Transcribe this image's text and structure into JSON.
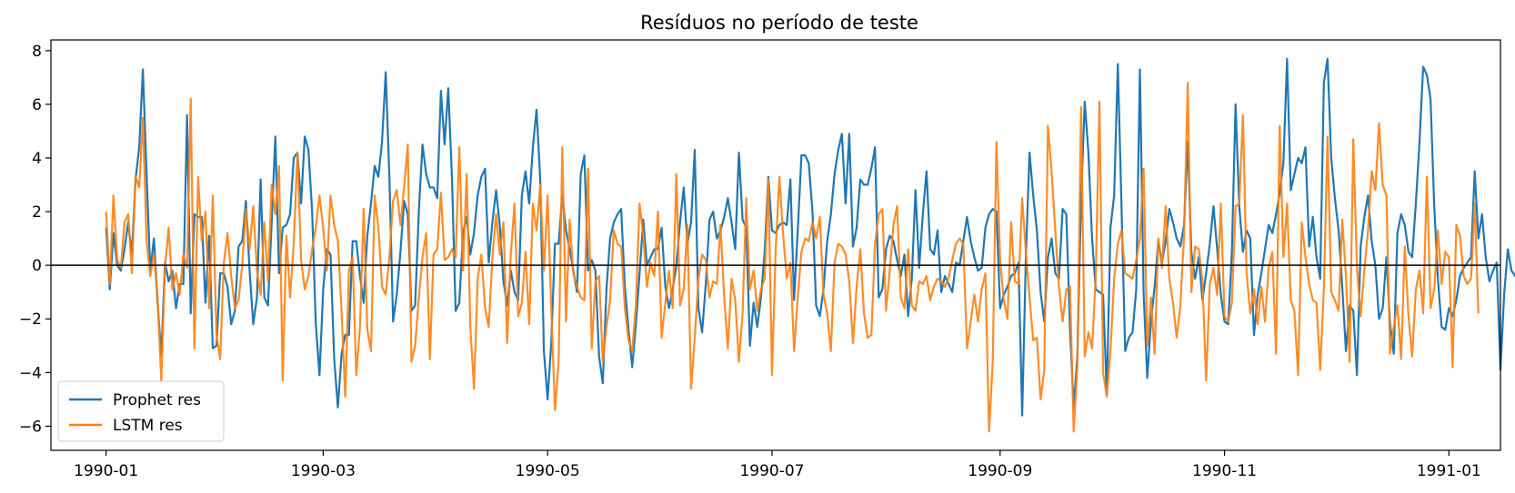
{
  "chart_data": {
    "type": "line",
    "title": "Resíduos no período de teste",
    "xlabel": "",
    "ylabel": "",
    "x_ticks": [
      "1990-01",
      "1990-03",
      "1990-05",
      "1990-07",
      "1990-09",
      "1990-11",
      "1991-01"
    ],
    "x_range": [
      "1989-12-17",
      "1991-01-15"
    ],
    "y_ticks": [
      -6,
      -4,
      -2,
      0,
      2,
      4,
      6,
      8
    ],
    "ylim": [
      -6.9,
      8.4
    ],
    "grid": false,
    "reference_line": 0,
    "legend_position": "lower-left",
    "series": [
      {
        "name": "Prophet res",
        "color": "#1f77b4",
        "start_date": "1990-01-01",
        "frequency": "daily",
        "values": [
          1.4,
          -0.9,
          1.2,
          0.0,
          -0.2,
          0.6,
          1.6,
          0.4,
          3.2,
          4.4,
          7.3,
          3.4,
          -0.2,
          1.0,
          -1.4,
          -3.4,
          0.1,
          -0.6,
          -0.2,
          -1.6,
          -0.7,
          -0.7,
          5.6,
          -1.8,
          1.9,
          1.8,
          1.8,
          -1.4,
          1.1,
          -3.1,
          -3.0,
          -0.3,
          -0.3,
          -0.8,
          -2.2,
          -1.7,
          0.7,
          0.9,
          2.4,
          -0.2,
          -2.2,
          -1.2,
          3.2,
          -1.2,
          -1.5,
          1.6,
          4.8,
          -0.3,
          1.4,
          1.5,
          1.9,
          4.0,
          4.2,
          2.3,
          4.8,
          4.3,
          2.0,
          -2.2,
          -4.1,
          -0.9,
          0.6,
          0.4,
          -3.5,
          -5.3,
          -3.3,
          -2.6,
          -2.6,
          0.9,
          0.9,
          -0.4,
          -1.4,
          1.1,
          2.3,
          3.7,
          3.3,
          4.6,
          7.2,
          3.3,
          -2.1,
          -1.1,
          0.5,
          2.4,
          1.9,
          -1.7,
          -1.5,
          2.0,
          4.5,
          3.4,
          2.9,
          2.9,
          2.5,
          6.5,
          4.5,
          6.6,
          3.3,
          -1.7,
          -1.4,
          1.2,
          1.8,
          0.4,
          1.2,
          2.6,
          3.3,
          3.6,
          0.1,
          1.6,
          2.8,
          1.5,
          -0.6,
          -1.5,
          -0.2,
          -1.0,
          -1.3,
          2.6,
          3.5,
          2.3,
          4.4,
          5.8,
          3.2,
          -3.2,
          -5.0,
          -2.9,
          0.8,
          0.8,
          2.6,
          1.3,
          0.6,
          -0.2,
          -1.0,
          3.4,
          4.1,
          -0.2,
          0.2,
          -0.2,
          -3.4,
          -4.4,
          -0.9,
          1.0,
          1.6,
          1.9,
          2.1,
          -0.8,
          -2.4,
          -3.8,
          -2.2,
          -0.3,
          1.7,
          0.0,
          0.3,
          0.6,
          0.6,
          1.4,
          -0.8,
          -1.6,
          -0.9,
          0.0,
          1.6,
          2.9,
          0.8,
          1.6,
          4.3,
          -1.6,
          -2.5,
          -0.7,
          1.7,
          2.0,
          1.0,
          1.3,
          1.8,
          2.5,
          1.6,
          0.6,
          4.2,
          1.7,
          1.4,
          -3.0,
          -1.4,
          -2.3,
          -1.2,
          0.5,
          3.3,
          1.3,
          1.2,
          1.5,
          1.6,
          1.5,
          3.2,
          -1.3,
          1.3,
          4.1,
          4.1,
          3.8,
          2.0,
          -1.5,
          -1.9,
          -0.9,
          0.9,
          1.9,
          3.4,
          4.3,
          4.9,
          2.3,
          4.9,
          0.7,
          1.4,
          3.2,
          3.0,
          3.0,
          3.6,
          4.4,
          -1.2,
          -0.9,
          0.6,
          1.1,
          0.9,
          0.2,
          -0.4,
          0.4,
          -1.9,
          -0.5,
          2.8,
          -0.1,
          1.9,
          3.5,
          0.6,
          0.4,
          1.3,
          -1.0,
          -0.4,
          -0.7,
          -1.0,
          0.1,
          0.0,
          0.9,
          1.8,
          0.9,
          0.3,
          -0.2,
          -0.1,
          1.4,
          1.9,
          2.1,
          2.0,
          -1.6,
          -1.1,
          -0.8,
          -0.4,
          -0.3,
          0.1,
          -5.6,
          0.3,
          4.2,
          2.6,
          1.3,
          -1.0,
          -2.1,
          0.3,
          1.0,
          -0.3,
          -0.5,
          2.1,
          1.9,
          -2.4,
          -5.3,
          -3.4,
          2.4,
          6.1,
          4.2,
          1.0,
          -0.9,
          -1.0,
          -1.1,
          -4.8,
          1.4,
          2.6,
          7.5,
          2.2,
          -3.2,
          -2.7,
          -2.5,
          -0.9,
          7.3,
          -1.0,
          -4.2,
          -2.1,
          -0.8,
          0.9,
          0.1,
          0.9,
          2.1,
          1.6,
          1.0,
          0.7,
          1.5,
          4.6,
          0.5,
          -0.5,
          0.3,
          -1.3,
          -0.3,
          0.8,
          2.2,
          0.6,
          -1.1,
          -2.1,
          -2.2,
          0.5,
          6.0,
          2.2,
          0.5,
          1.3,
          1.0,
          -2.6,
          -1.1,
          -0.3,
          0.6,
          1.5,
          1.2,
          1.9,
          2.7,
          3.8,
          7.7,
          2.8,
          3.4,
          4.0,
          3.8,
          4.4,
          0.7,
          1.8,
          0.3,
          -0.5,
          6.8,
          7.7,
          4.0,
          2.5,
          1.3,
          -0.8,
          -3.2,
          -1.5,
          -1.7,
          -4.1,
          0.7,
          1.8,
          2.6,
          0.9,
          0.0,
          -2.0,
          -1.6,
          0.3,
          -2.2,
          -3.3,
          1.2,
          1.9,
          1.5,
          0.5,
          0.3,
          2.3,
          4.6,
          7.4,
          7.1,
          6.2,
          2.2,
          -0.5,
          -2.3,
          -2.4,
          -1.6,
          -1.9,
          -1.3,
          -0.4,
          -0.1,
          0.1,
          0.3,
          3.5,
          1.0,
          1.9,
          0.3,
          -0.6,
          -0.2,
          0.1,
          -3.9,
          -1.1,
          0.6,
          -0.2,
          -0.4,
          -0.5,
          -0.2,
          1.7,
          -1.1
        ]
      },
      {
        "name": "LSTM res",
        "color": "#ff7f0e",
        "start_date": "1990-01-01",
        "frequency": "daily",
        "values": [
          2.0,
          -0.7,
          2.6,
          0.2,
          -0.1,
          1.6,
          1.9,
          -0.3,
          3.3,
          2.9,
          5.5,
          0.9,
          -0.4,
          0.4,
          -1.2,
          -4.3,
          -0.1,
          1.4,
          -0.9,
          -0.3,
          -1.1,
          0.4,
          -0.1,
          6.2,
          -3.1,
          3.3,
          0.9,
          2.0,
          -1.6,
          2.6,
          -2.6,
          -3.5,
          0.1,
          1.2,
          -0.4,
          -1.6,
          -1.3,
          0.0,
          2.1,
          0.6,
          2.2,
          -0.2,
          -1.1,
          1.6,
          -0.6,
          3.0,
          1.9,
          3.7,
          -4.3,
          1.1,
          -1.2,
          0.8,
          4.2,
          0.2,
          -0.9,
          -0.4,
          0.6,
          1.4,
          2.6,
          1.4,
          -0.2,
          2.6,
          1.5,
          0.9,
          -1.7,
          -4.9,
          -0.2,
          0.3,
          -4.1,
          -2.3,
          2.1,
          -2.4,
          -3.2,
          2.6,
          1.4,
          -0.8,
          -1.1,
          0.3,
          2.4,
          2.8,
          1.5,
          2.9,
          4.5,
          -3.6,
          -3.0,
          -1.2,
          0.3,
          1.2,
          -3.5,
          0.4,
          0.6,
          2.7,
          0.2,
          0.3,
          0.6,
          0.3,
          4.4,
          -0.2,
          3.4,
          -2.3,
          -4.6,
          -0.5,
          0.4,
          -1.6,
          -2.3,
          0.3,
          1.9,
          0.4,
          1.6,
          -2.9,
          0.4,
          2.3,
          -1.9,
          -1.4,
          0.5,
          -2.2,
          2.3,
          1.3,
          3.0,
          -0.2,
          2.6,
          -1.6,
          -5.4,
          -3.6,
          4.4,
          -2.1,
          1.7,
          -0.3,
          -0.8,
          -1.2,
          -1.3,
          3.6,
          -3.1,
          -0.6,
          -0.4,
          -3.6,
          -2.3,
          -1.3,
          1.3,
          0.8,
          0.7,
          -1.6,
          -2.8,
          -3.2,
          -1.5,
          2.3,
          1.1,
          -0.8,
          0.1,
          -0.4,
          2.0,
          -2.7,
          -1.4,
          -0.2,
          -1.6,
          3.4,
          -1.5,
          -0.9,
          1.5,
          -4.6,
          -2.7,
          -0.5,
          0.4,
          0.2,
          -1.2,
          -0.6,
          -0.7,
          1.5,
          -1.2,
          -3.1,
          -0.5,
          -1.3,
          -3.6,
          -1.8,
          2.5,
          -0.9,
          -0.2,
          -1.7,
          -0.9,
          -0.5,
          3.2,
          -4.1,
          0.6,
          3.3,
          1.2,
          -0.5,
          0.1,
          -3.2,
          -1.2,
          0.5,
          1.0,
          0.9,
          1.6,
          1.0,
          1.8,
          -1.1,
          -1.8,
          -3.2,
          0.1,
          0.8,
          0.7,
          0.4,
          -0.6,
          -2.9,
          -0.8,
          0.6,
          -1.8,
          -2.7,
          -2.6,
          0.8,
          1.9,
          2.1,
          -1.7,
          -0.2,
          1.5,
          2.2,
          -1.2,
          -1.6,
          0.6,
          -1.5,
          -1.7,
          -0.6,
          -0.7,
          -0.4,
          -1.3,
          -0.8,
          -0.5,
          -0.6,
          -0.8,
          -0.5,
          0.2,
          0.8,
          1.0,
          0.8,
          -3.1,
          -2.1,
          -1.1,
          -2.1,
          -0.9,
          -0.3,
          -6.2,
          -3.6,
          4.6,
          0.2,
          -1.3,
          -2.0,
          1.6,
          -0.6,
          -0.7,
          2.5,
          0.5,
          -1.2,
          -2.8,
          -2.7,
          -5.0,
          -3.9,
          5.2,
          3.5,
          1.3,
          -0.8,
          -2.1,
          -0.9,
          -0.8,
          -6.2,
          -3.8,
          5.9,
          -3.4,
          -2.5,
          -3.1,
          -0.4,
          6.1,
          -4.0,
          -4.9,
          -3.2,
          -0.5,
          0.8,
          1.3,
          -0.3,
          -0.4,
          -0.5,
          0.2,
          1.0,
          3.6,
          -3.0,
          -1.2,
          -3.3,
          1.0,
          -0.1,
          2.2,
          -0.5,
          -1.4,
          -2.7,
          -1.5,
          1.1,
          6.8,
          -1.0,
          0.7,
          0.6,
          -0.6,
          -4.3,
          -0.7,
          -0.1,
          -1.1,
          2.3,
          -1.9,
          -2.1,
          -1.4,
          2.2,
          2.3,
          5.6,
          -0.3,
          -1.8,
          -0.9,
          -2.2,
          -0.8,
          -2.1,
          -0.1,
          0.5,
          -3.3,
          5.2,
          0.3,
          2.3,
          -1.3,
          -1.7,
          -4.1,
          1.6,
          0.3,
          -0.7,
          -1.3,
          -1.4,
          -3.9,
          -0.9,
          4.8,
          -1.0,
          -1.3,
          -1.7,
          1.7,
          -0.4,
          -3.6,
          4.7,
          -0.1,
          -1.9,
          -0.2,
          1.3,
          3.5,
          2.8,
          5.3,
          3.0,
          2.6,
          -3.3,
          -2.3,
          -1.5,
          -3.5,
          0.7,
          -1.9,
          -3.4,
          -0.9,
          -0.2,
          -1.8,
          3.3,
          -1.6,
          -0.9,
          1.3,
          -0.7,
          0.5,
          0.3,
          -3.8,
          1.5,
          1.1,
          -0.4,
          -0.7,
          -0.5,
          2.3,
          -1.8
        ]
      }
    ]
  }
}
